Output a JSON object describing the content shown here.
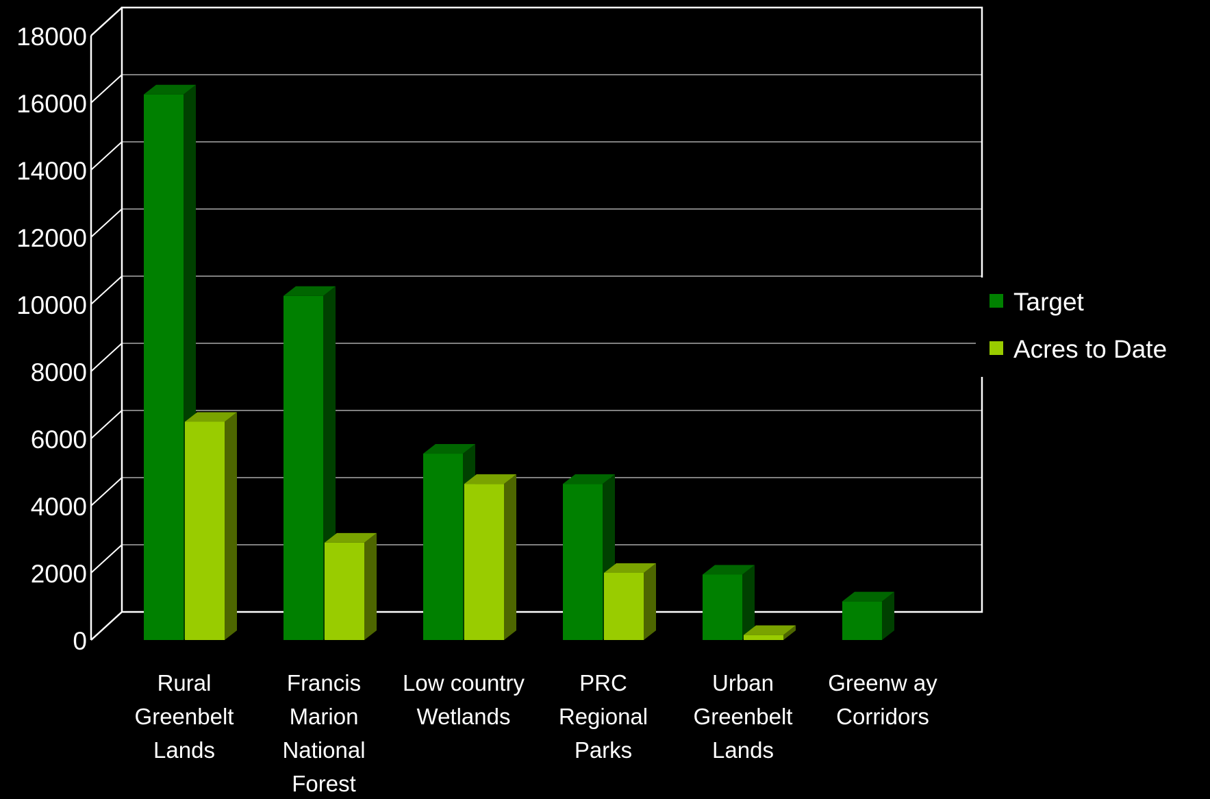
{
  "chart_data": {
    "type": "bar",
    "title": "",
    "xlabel": "",
    "ylabel": "",
    "categories": [
      [
        "Rural",
        "Greenbelt",
        "Lands"
      ],
      [
        "Francis",
        "Marion",
        "National",
        "Forest"
      ],
      [
        "Low country",
        "Wetlands"
      ],
      [
        "PRC",
        "Regional",
        "Parks"
      ],
      [
        "Urban",
        "Greenbelt",
        "Lands"
      ],
      [
        "Greenw ay",
        "Corridors"
      ]
    ],
    "series": [
      {
        "name": "Target",
        "color": "#008000",
        "values": [
          16250,
          10250,
          5550,
          4650,
          1950,
          1150
        ]
      },
      {
        "name": "Acres to Date",
        "color": "#99CC00",
        "values": [
          6500,
          2900,
          4650,
          2000,
          150,
          null
        ]
      }
    ],
    "ylim": [
      0,
      18000
    ],
    "yticks": [
      "0",
      "2000",
      "4000",
      "6000",
      "8000",
      "10000",
      "12000",
      "14000",
      "16000",
      "18000"
    ],
    "grid": true,
    "legend_position": "right"
  }
}
